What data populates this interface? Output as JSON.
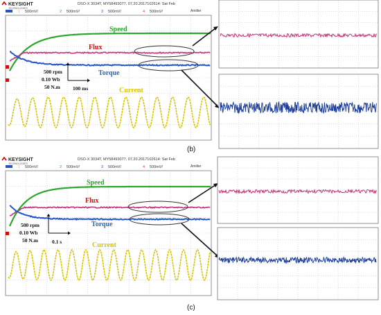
{
  "panels": [
    {
      "id": "b",
      "caption": "(b)",
      "header": {
        "brand": "KEYSIGHT",
        "brand_sub": "TECHNOLOGIES",
        "info": "DSO-X 3034T, MY58493077, 07.20.2017102614: Sat Feb",
        "right_label": "Amilter",
        "channels": [
          {
            "num": "1",
            "scale": "500mV/",
            "color": "#d8c400"
          },
          {
            "num": "2",
            "scale": "500mV/",
            "color": "#2aa72a"
          },
          {
            "num": "3",
            "scale": "500mV/",
            "color": "#2255cc"
          },
          {
            "num": "4",
            "scale": "500mV/",
            "color": "#d03a8a"
          }
        ]
      },
      "labels": {
        "speed": "Speed",
        "flux": "Flux",
        "torque": "Torque",
        "current": "Current",
        "scale_rpm": "500 rpm",
        "scale_wb": "0.10 Wb",
        "scale_nm": "50 N.m",
        "time_div": "100 ms"
      }
    },
    {
      "id": "c",
      "caption": "(c)",
      "header": {
        "brand": "KEYSIGHT",
        "brand_sub": "TECHNOLOGIES",
        "info": "DSO-X 3034T, MY58493077, 07.20.2017102614: Sat Feb",
        "right_label": "Amilter",
        "channels": [
          {
            "num": "1",
            "scale": "500mV/",
            "color": "#d8c400"
          },
          {
            "num": "2",
            "scale": "500mV/",
            "color": "#2aa72a"
          },
          {
            "num": "3",
            "scale": "500mV/",
            "color": "#2255cc"
          },
          {
            "num": "4",
            "scale": "500mV/",
            "color": "#d03a8a"
          }
        ]
      },
      "labels": {
        "speed": "Speed",
        "flux": "Flux",
        "torque": "Torque",
        "current": "Current",
        "scale_rpm": "500 rpm",
        "scale_wb": "0.10 Wb",
        "scale_nm": "50 N.m",
        "time_div": "0.1 s"
      }
    }
  ],
  "colors": {
    "speed": "#2aa72a",
    "flux": "#c2307e",
    "torque": "#2255cc",
    "current": "#d8c400",
    "speed_label": "#2aa72a",
    "flux_label": "#cc1111",
    "torque_label": "#2a66b8",
    "current_label": "#d8c400",
    "grid": "#bbbbbb",
    "screen_bg": "#ffffff"
  },
  "chart_data": [
    {
      "type": "line",
      "panel": "b",
      "series": [
        {
          "name": "Speed",
          "shape": "first-order rise then constant"
        },
        {
          "name": "Flux",
          "shape": "constant with small ripple"
        },
        {
          "name": "Torque",
          "shape": "initial transient then constant"
        },
        {
          "name": "Current",
          "shape": "sinusoidal"
        }
      ],
      "zoom_insets": [
        "Flux",
        "Torque"
      ]
    },
    {
      "type": "line",
      "panel": "c",
      "series": [
        {
          "name": "Speed",
          "shape": "first-order rise then constant"
        },
        {
          "name": "Flux",
          "shape": "constant with small ripple"
        },
        {
          "name": "Torque",
          "shape": "initial transient then constant"
        },
        {
          "name": "Current",
          "shape": "sinusoidal"
        }
      ],
      "zoom_insets": [
        "Flux",
        "Torque"
      ]
    }
  ]
}
